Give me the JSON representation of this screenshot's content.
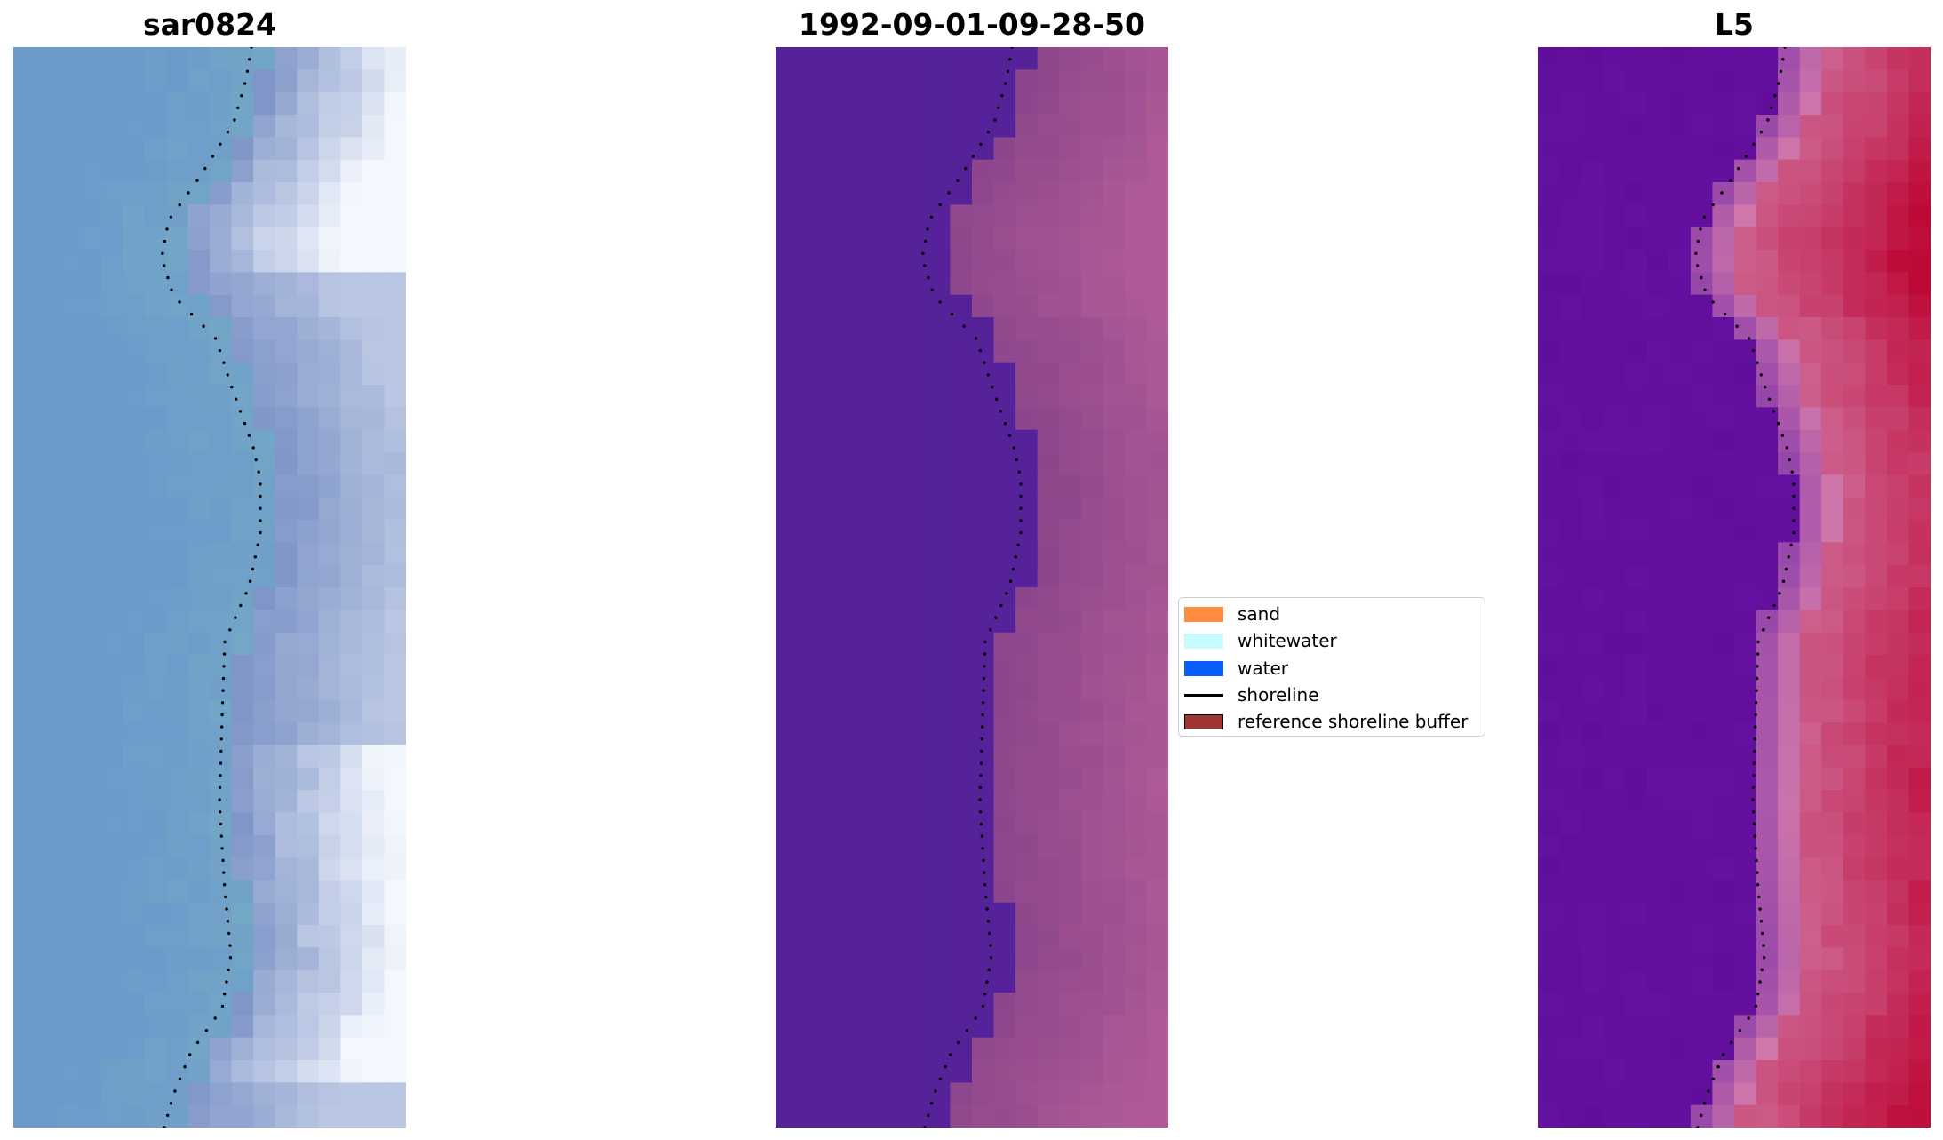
{
  "panels": [
    {
      "title": "sar0824",
      "icon": "rgb-satellite-image",
      "palette": "rgb"
    },
    {
      "title": "1992-09-01-09-28-50",
      "icon": "classified-image",
      "palette": "class"
    },
    {
      "title": "L5",
      "icon": "index-image",
      "palette": "index"
    }
  ],
  "legend": {
    "items": [
      {
        "label": "sand",
        "color": "#ff8c3f",
        "kind": "patch"
      },
      {
        "label": "whitewater",
        "color": "#c8fcfc",
        "kind": "patch"
      },
      {
        "label": "water",
        "color": "#0a5efc",
        "kind": "patch"
      },
      {
        "label": "shoreline",
        "color": "#000000",
        "kind": "line"
      },
      {
        "label": "reference shoreline buffer",
        "color": "#9e3535",
        "kind": "patch"
      }
    ]
  },
  "colors": {
    "shoreline_dots": "#000000",
    "class_water": "#55229a",
    "class_land": "#8c4a8c"
  }
}
